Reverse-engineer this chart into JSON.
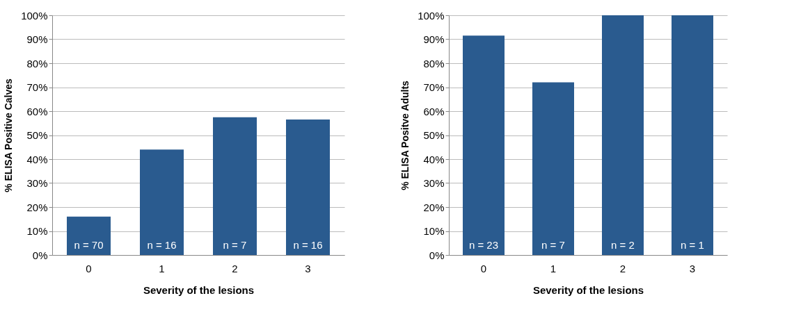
{
  "chart_data": [
    {
      "type": "bar",
      "xlabel": "Severity of the lesions",
      "ylabel": "% ELISA Positive Calves",
      "categories": [
        "0",
        "1",
        "2",
        "3"
      ],
      "values": [
        16,
        44,
        57.5,
        56.5
      ],
      "color": "#2a5b8f",
      "ylim": [
        0,
        100
      ],
      "yticks": [
        {
          "value": 0,
          "label": "0%"
        },
        {
          "value": 10,
          "label": "10%"
        },
        {
          "value": 20,
          "label": "20%"
        },
        {
          "value": 30,
          "label": "30%"
        },
        {
          "value": 40,
          "label": "40%"
        },
        {
          "value": 50,
          "label": "50%"
        },
        {
          "value": 60,
          "label": "60%"
        },
        {
          "value": 70,
          "label": "70%"
        },
        {
          "value": 80,
          "label": "80%"
        },
        {
          "value": 90,
          "label": "90%"
        },
        {
          "value": 100,
          "label": "100%"
        }
      ],
      "grid": "y",
      "annotations": [
        "n = 70",
        "n = 16",
        "n = 7",
        "n = 16"
      ]
    },
    {
      "type": "bar",
      "xlabel": "Severity of the lesions",
      "ylabel": "% ELISA Positve Adults",
      "categories": [
        "0",
        "1",
        "2",
        "3"
      ],
      "values": [
        91.5,
        72,
        100,
        100
      ],
      "color": "#2a5b8f",
      "ylim": [
        0,
        100
      ],
      "yticks": [
        {
          "value": 0,
          "label": "0%"
        },
        {
          "value": 10,
          "label": "10%"
        },
        {
          "value": 20,
          "label": "20%"
        },
        {
          "value": 30,
          "label": "30%"
        },
        {
          "value": 40,
          "label": "40%"
        },
        {
          "value": 50,
          "label": "50%"
        },
        {
          "value": 60,
          "label": "60%"
        },
        {
          "value": 70,
          "label": "70%"
        },
        {
          "value": 80,
          "label": "80%"
        },
        {
          "value": 90,
          "label": "90%"
        },
        {
          "value": 100,
          "label": "100%"
        }
      ],
      "grid": "y",
      "annotations": [
        "n = 23",
        "n = 7",
        "n = 2",
        "n = 1"
      ]
    }
  ]
}
